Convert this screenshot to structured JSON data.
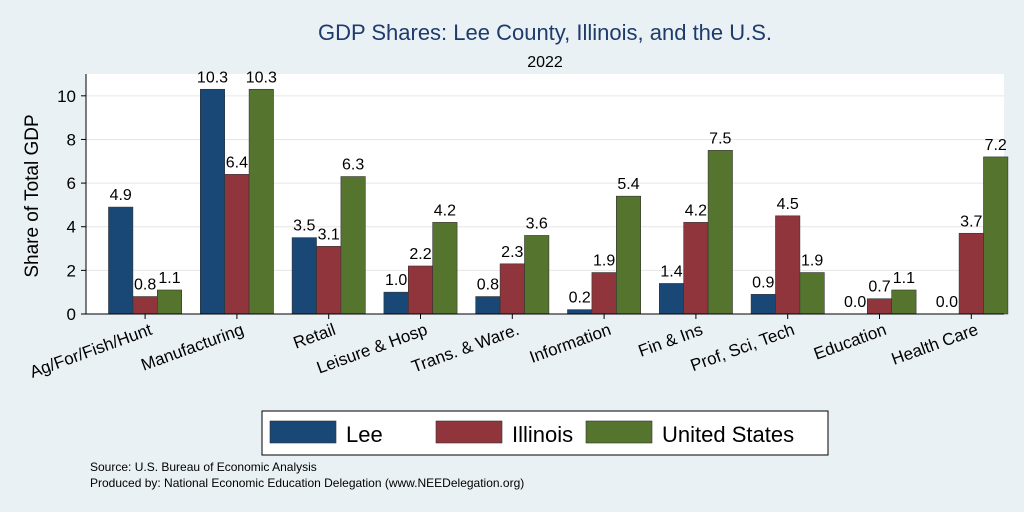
{
  "chart_data": {
    "type": "bar",
    "title": "GDP Shares: Lee County, Illinois, and the U.S.",
    "subtitle": "2022",
    "ylabel": "Share of Total GDP",
    "xlabel": "",
    "ylim": [
      0,
      11
    ],
    "yticks": [
      0,
      2,
      4,
      6,
      8,
      10
    ],
    "grid": true,
    "legend_position": "bottom",
    "categories": [
      "Ag/For/Fish/Hunt",
      "Manufacturing",
      "Retail",
      "Leisure & Hosp",
      "Trans. & Ware.",
      "Information",
      "Fin & Ins",
      "Prof, Sci, Tech",
      "Education",
      "Health Care"
    ],
    "series": [
      {
        "name": "Lee",
        "color": "#1a4876",
        "values": [
          4.9,
          10.3,
          3.5,
          1.0,
          0.8,
          0.2,
          1.4,
          0.9,
          0.0,
          0.0
        ],
        "labels": [
          "4.9",
          "10.3",
          "3.5",
          "1.0",
          "0.8",
          "0.2",
          "1.4",
          "0.9",
          "0.0",
          "0.0"
        ]
      },
      {
        "name": "Illinois",
        "color": "#90353b",
        "values": [
          0.8,
          6.4,
          3.1,
          2.2,
          2.3,
          1.9,
          4.2,
          4.5,
          0.7,
          3.7
        ],
        "labels": [
          "0.8",
          "6.4",
          "3.1",
          "2.2",
          "2.3",
          "1.9",
          "4.2",
          "4.5",
          "0.7",
          "3.7"
        ]
      },
      {
        "name": "United States",
        "color": "#55752f",
        "values": [
          1.1,
          10.3,
          6.3,
          4.2,
          3.6,
          5.4,
          7.5,
          1.9,
          1.1,
          7.2
        ],
        "labels": [
          "1.1",
          "10.3",
          "6.3",
          "4.2",
          "3.6",
          "5.4",
          "7.5",
          "1.9",
          "1.1",
          "7.2"
        ]
      }
    ]
  },
  "notes": {
    "source": "Source: U.S. Bureau of Economic Analysis",
    "produced": "Produced by: National Economic Education Delegation (www.NEEDelegation.org)"
  }
}
